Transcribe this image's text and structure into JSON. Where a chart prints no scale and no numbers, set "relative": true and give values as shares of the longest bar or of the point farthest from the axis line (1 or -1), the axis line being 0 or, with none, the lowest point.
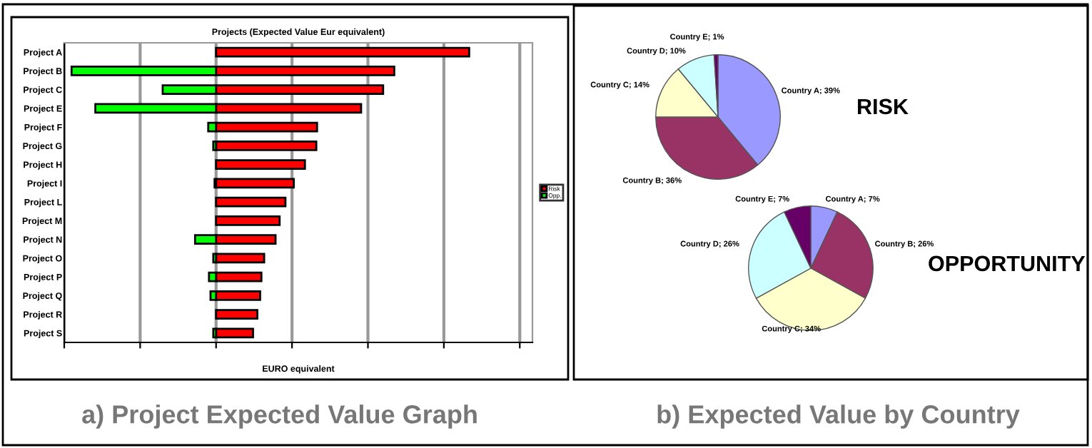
{
  "chart_data": [
    {
      "type": "bar",
      "orientation": "horizontal",
      "stacked": false,
      "relative": true,
      "title": "Projects (Expected Value Eur equivalent)",
      "xlabel": "EURO equivalent",
      "categories": [
        "Project A",
        "Project B",
        "Project C",
        "Project E",
        "Project F",
        "Project G",
        "Project H",
        "Project I",
        "Project L",
        "Project M",
        "Project N",
        "Project O",
        "Project P",
        "Project Q",
        "Project R",
        "Project S"
      ],
      "series": [
        {
          "name": "Risk",
          "color": "#ff0000",
          "values": [
            1.0,
            0.704,
            0.66,
            0.573,
            0.399,
            0.396,
            0.351,
            0.307,
            0.274,
            0.251,
            0.235,
            0.19,
            0.179,
            0.174,
            0.163,
            0.146
          ]
        },
        {
          "name": "Opp.",
          "color": "#00ff00",
          "values": [
            null,
            -0.571,
            -0.211,
            -0.477,
            -0.031,
            -0.011,
            null,
            -0.006,
            null,
            null,
            -0.083,
            -0.011,
            -0.028,
            -0.022,
            null,
            -0.011
          ]
        }
      ],
      "grid": "x",
      "legend": "right",
      "annotations": [
        "a) Project Expected Value Graph"
      ]
    },
    {
      "type": "pie",
      "title": "RISK",
      "categories": [
        "Country A",
        "Country B",
        "Country C",
        "Country D",
        "Country E"
      ],
      "values": [
        39,
        36,
        14,
        10,
        1
      ],
      "colors": [
        "#9999ff",
        "#993366",
        "#ffffcc",
        "#ccffff",
        "#660066"
      ],
      "value_labels": [
        "; 39%",
        "; 36%",
        "; 14%",
        "; 10%",
        "; 1%"
      ],
      "annotations": [
        "b) Expected Value by Country"
      ]
    },
    {
      "type": "pie",
      "title": "OPPORTUNITY",
      "categories": [
        "Country A",
        "Country B",
        "Country C",
        "Country D",
        "Country E"
      ],
      "values": [
        7,
        26,
        34,
        26,
        7
      ],
      "colors": [
        "#9999ff",
        "#993366",
        "#ffffcc",
        "#ccffff",
        "#660066"
      ],
      "value_labels": [
        "; 7%",
        "; 26%",
        "; 34%",
        "; 26%",
        "; 7%"
      ]
    }
  ]
}
